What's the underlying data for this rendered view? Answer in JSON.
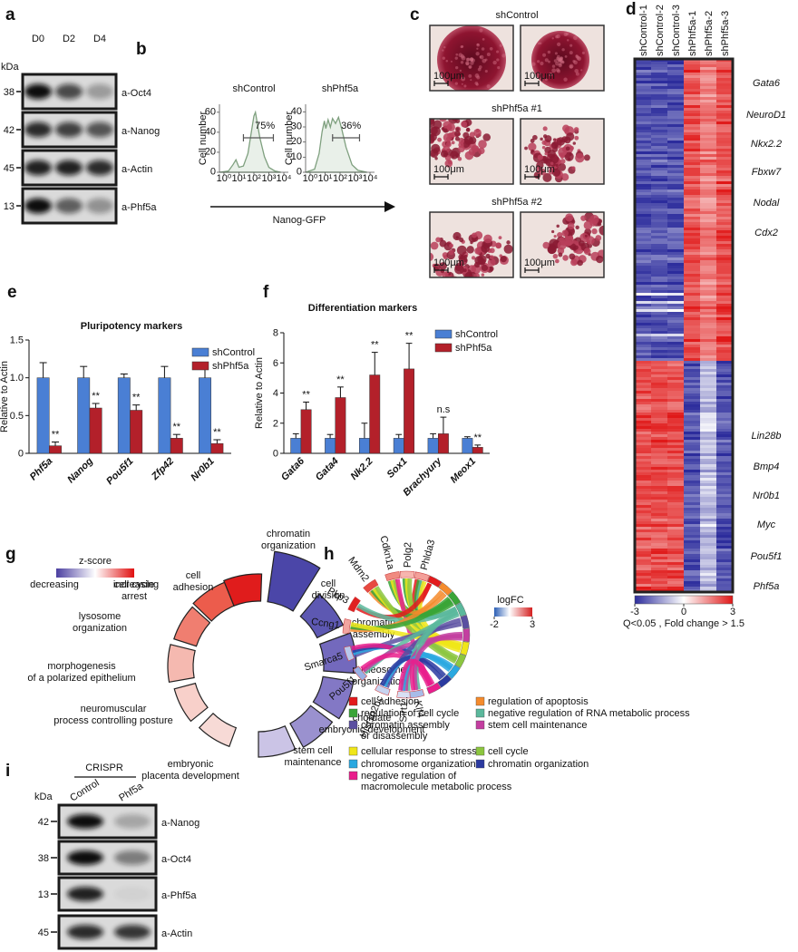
{
  "chart_data": [
    {
      "panel": "e",
      "type": "bar",
      "title": "Pluripotency markers",
      "y_label": "Relative to Actin",
      "categories": [
        "Phf5a",
        "Nanog",
        "Pou5f1",
        "Zfp42",
        "Nr0b1"
      ],
      "series": [
        {
          "name": "shControl",
          "color": "#4a7fd4",
          "values": [
            1,
            1,
            1,
            1,
            1
          ],
          "errors": [
            0.2,
            0.15,
            0.05,
            0.15,
            0.13
          ]
        },
        {
          "name": "shPhf5a",
          "color": "#b3202a",
          "values": [
            0.1,
            0.6,
            0.57,
            0.2,
            0.13
          ],
          "errors": [
            0.05,
            0.06,
            0.07,
            0.05,
            0.05
          ]
        }
      ],
      "annotations": [
        "**",
        "**",
        "**",
        "**",
        "**"
      ],
      "ylim": [
        0,
        1.5
      ],
      "yticks": [
        0,
        0.5,
        {
          "value": 1,
          "label": "1.0"
        },
        1.5
      ]
    },
    {
      "panel": "f",
      "type": "bar",
      "title": "Differentiation markers",
      "y_label": "Relative to Actin",
      "categories": [
        "Gata6",
        "Gata4",
        "Nk2.2",
        "Sox1",
        "Brachyury",
        "Meox1"
      ],
      "series": [
        {
          "name": "shControl",
          "color": "#4a7fd4",
          "values": [
            1,
            1,
            1,
            1,
            1,
            1
          ],
          "errors": [
            0.3,
            0.25,
            1,
            0.25,
            0.3,
            0.1
          ]
        },
        {
          "name": "shPhf5a",
          "color": "#b3202a",
          "values": [
            2.9,
            3.7,
            5.2,
            5.6,
            1.3,
            0.4
          ],
          "errors": [
            0.5,
            0.7,
            1.5,
            1.7,
            1.1,
            0.15
          ]
        }
      ],
      "annotations": [
        "**",
        "**",
        "**",
        "**",
        "n.s",
        "**"
      ],
      "ylim": [
        0,
        8
      ],
      "yticks": [
        0,
        2,
        4,
        6,
        8
      ]
    }
  ],
  "figure": {
    "a": {
      "label": "a",
      "lanes": [
        "D0",
        "D2",
        "D4"
      ],
      "kda": "kDa",
      "rows": [
        {
          "mw": "38",
          "antibody": "a-Oct4"
        },
        {
          "mw": "42",
          "antibody": "a-Nanog"
        },
        {
          "mw": "45",
          "antibody": "a-Actin"
        },
        {
          "mw": "13",
          "antibody": "a-Phf5a"
        }
      ]
    },
    "b": {
      "label": "b",
      "y_label": "Cell number",
      "x_label": "Nanog-GFP",
      "xscale": "log",
      "xlim": [
        0.5,
        20000
      ],
      "xticks": [
        {
          "value": 1,
          "label": "10⁰"
        },
        {
          "value": 10,
          "label": "10¹"
        },
        {
          "value": 100,
          "label": "10²"
        },
        {
          "value": 1000,
          "label": "10³"
        },
        {
          "value": 10000,
          "label": "10⁴"
        }
      ],
      "plots": [
        {
          "title": "shControl",
          "percent": "75%",
          "ylim": [
            0,
            68
          ],
          "yticks": [
            0,
            20,
            40,
            60
          ]
        },
        {
          "title": "shPhf5a",
          "percent": "36%",
          "ylim": [
            0,
            45
          ],
          "yticks": [
            0,
            10,
            20,
            30,
            40
          ]
        }
      ]
    },
    "c": {
      "label": "c",
      "groups": [
        "shControl",
        "shPhf5a #1",
        "shPhf5a #2"
      ],
      "scale_bar": "100μm"
    },
    "d": {
      "label": "d",
      "columns": [
        "shControl-1",
        "shControl-2",
        "shControl-3",
        "shPhf5a-1",
        "shPhf5a-2",
        "shPhf5a-3"
      ],
      "genes_up": [
        "Gata6",
        "NeuroD1",
        "Nkx2.2",
        "Fbxw7",
        "Nodal",
        "Cdx2"
      ],
      "genes_down": [
        "Lin28b",
        "Bmp4",
        "Nr0b1",
        "Myc",
        "Pou5f1",
        "Phf5a"
      ],
      "colorbar": {
        "lim": [
          -3,
          3
        ],
        "ticks": [
          -3,
          0,
          3
        ]
      },
      "caption": "Q<0.05 , Fold change > 1.5"
    },
    "g": {
      "label": "g",
      "legend_title": "z-score",
      "legend_low": "decreasing",
      "legend_high": "increasing",
      "terms": [
        {
          "lines": [
            "chromatin",
            "organization"
          ],
          "color": "#4b46a8"
        },
        {
          "lines": [
            "cell",
            "division"
          ],
          "color": "#5d58b2"
        },
        {
          "lines": [
            "chromatin",
            "assembly"
          ],
          "color": "#7369bd"
        },
        {
          "lines": [
            "nucleosome",
            "organization"
          ],
          "color": "#8378c5"
        },
        {
          "lines": [
            "chordate",
            "embryonic development"
          ],
          "color": "#9a91cf"
        },
        {
          "lines": [
            "stem cell",
            "maintenance"
          ],
          "color": "#cbc4e6"
        },
        {
          "lines": [
            "embryonic",
            "placenta development"
          ],
          "color": "#f7dad6"
        },
        {
          "lines": [
            "neuromuscular",
            "process controlling posture"
          ],
          "color": "#f8d0ca"
        },
        {
          "lines": [
            "morphogenesis",
            "of a polarized epithelium"
          ],
          "color": "#f5b9b0"
        },
        {
          "lines": [
            "lysosome",
            "organization"
          ],
          "color": "#f07e70"
        },
        {
          "lines": [
            "cell cycle",
            "arrest"
          ],
          "color": "#ec5c4c"
        },
        {
          "lines": [
            "cell",
            "adhesion"
          ],
          "color": "#e01c1c"
        }
      ]
    },
    "h": {
      "label": "h",
      "genes": [
        "Phlda3",
        "Polg2",
        "Cdkn1a",
        "Mdm2",
        "Pkp3",
        "Ccng1",
        "Smarca5",
        "Pou5f1",
        "Hist1h2bc",
        "Sirt1",
        "Klf4"
      ],
      "gene_colors": [
        "#f4a09a",
        "#f7b5ae",
        "#f08a80",
        "#e84a40",
        "#e02020",
        "#f3a5a0",
        "#b8c8ec",
        "#98b0e4",
        "#c8d4f0",
        "#d8e0f4",
        "#a8bce8"
      ],
      "logfc_title": "logFC",
      "logfc_lim": [
        -2,
        3
      ],
      "logfc_ticks": [
        -2,
        3
      ],
      "categories": [
        {
          "lines": [
            "cell adhesion"
          ],
          "color": "#e31a1c"
        },
        {
          "lines": [
            "regulation of apoptosis"
          ],
          "color": "#f58b2c"
        },
        {
          "lines": [
            "regulation of cell cycle"
          ],
          "color": "#3aa537"
        },
        {
          "lines": [
            "negative regulation of RNA metabolic process"
          ],
          "color": "#5bb89c"
        },
        {
          "lines": [
            "chromatin assembly",
            "or disassembly"
          ],
          "color": "#5a4fa1"
        },
        {
          "lines": [
            "stem cell maintenance"
          ],
          "color": "#c33ea0"
        },
        {
          "lines": [
            "cellular response to stress"
          ],
          "color": "#f0e619"
        },
        {
          "lines": [
            "cell cycle"
          ],
          "color": "#8cc63f"
        },
        {
          "lines": [
            "chromosome organization"
          ],
          "color": "#2aa8e0"
        },
        {
          "lines": [
            "chromatin organization"
          ],
          "color": "#2b3aa0"
        },
        {
          "lines": [
            "negative regulation of",
            "macromolecule metabolic process"
          ],
          "color": "#e91e8c"
        }
      ]
    },
    "i": {
      "label": "i",
      "group": "CRISPR",
      "lanes": [
        "Control",
        "Phf5a"
      ],
      "kda": "kDa",
      "rows": [
        {
          "mw": "42",
          "antibody": "a-Nanog"
        },
        {
          "mw": "38",
          "antibody": "a-Oct4"
        },
        {
          "mw": "13",
          "antibody": "a-Phf5a"
        },
        {
          "mw": "45",
          "antibody": "a-Actin"
        }
      ]
    }
  }
}
